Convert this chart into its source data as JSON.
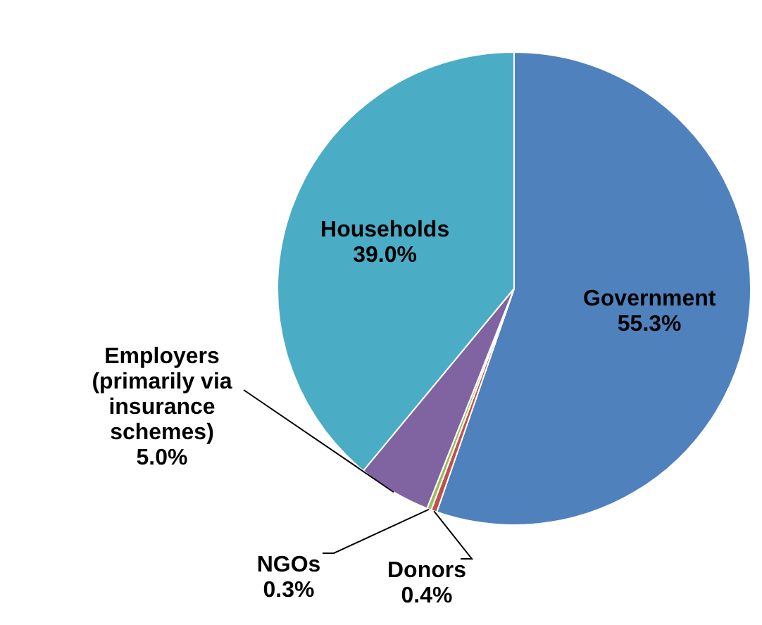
{
  "chart_data": {
    "type": "pie",
    "categories": [
      "Government",
      "Donors",
      "NGOs",
      "Employers (primarily via insurance schemes)",
      "Households"
    ],
    "values": [
      55.3,
      0.4,
      0.3,
      5.0,
      39.0
    ],
    "colors": [
      "#4f81bd",
      "#c0504d",
      "#9bbb59",
      "#8064a2",
      "#4bacc6"
    ],
    "value_labels": [
      "55.3%",
      "0.4%",
      "0.3%",
      "5.0%",
      "39.0%"
    ]
  }
}
